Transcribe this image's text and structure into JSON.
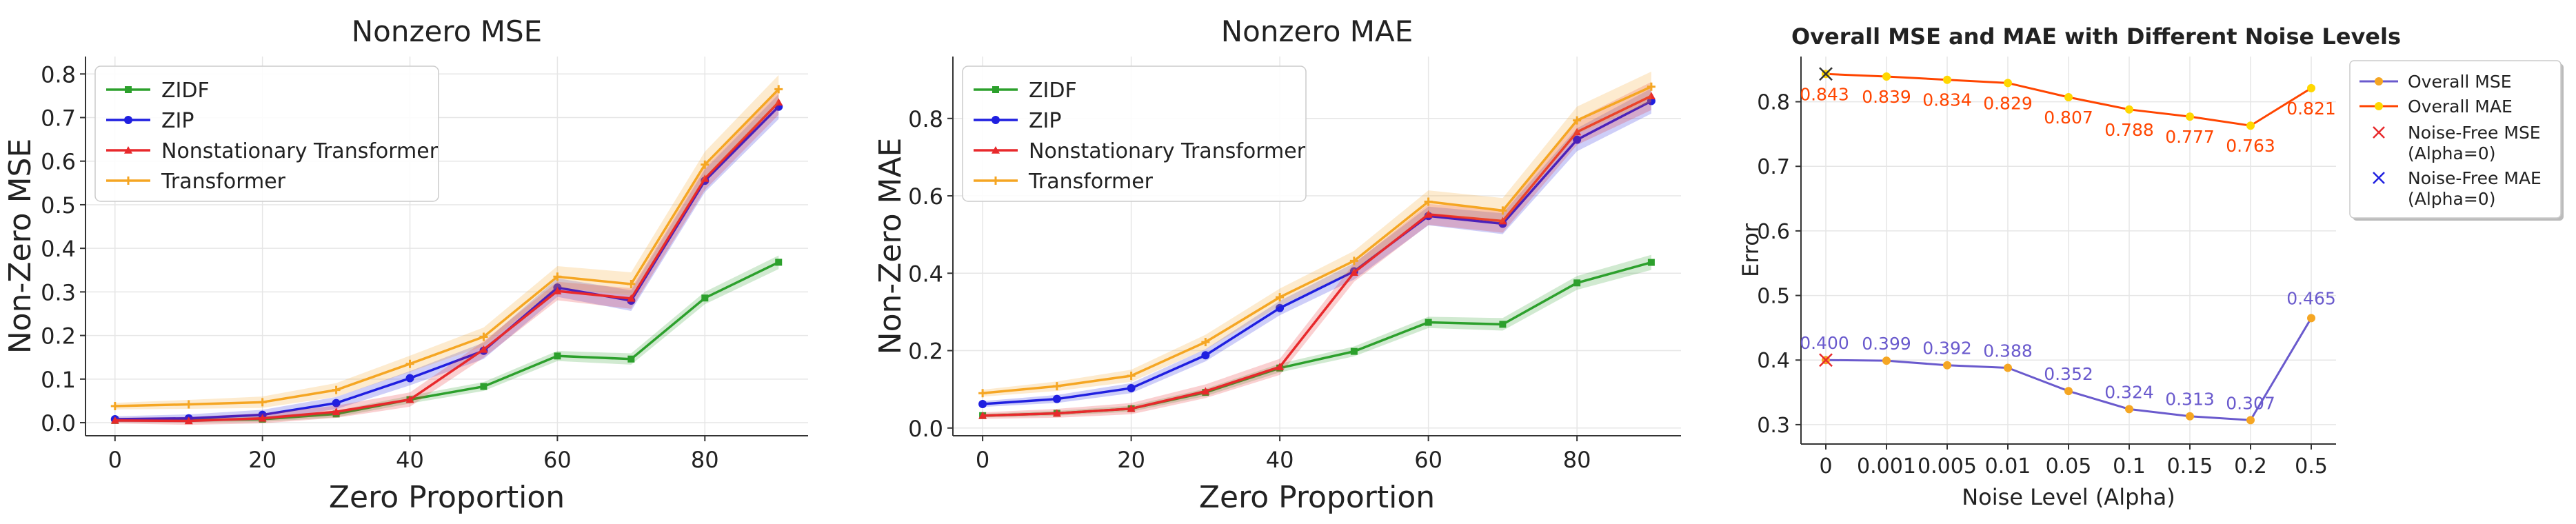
{
  "chart_data": [
    {
      "type": "line",
      "title": "Nonzero MSE",
      "xlabel": "Zero Proportion",
      "ylabel": "Non-Zero MSE",
      "x": [
        0,
        10,
        20,
        30,
        40,
        50,
        60,
        70,
        80,
        90
      ],
      "xticks": [
        0,
        20,
        40,
        60,
        80
      ],
      "yticks": [
        0.0,
        0.1,
        0.2,
        0.3,
        0.4,
        0.5,
        0.6,
        0.7,
        0.8
      ],
      "xlim": [
        -4,
        94
      ],
      "ylim": [
        -0.03,
        0.84
      ],
      "grid": true,
      "legend_position": "top-left",
      "series": [
        {
          "name": "ZIDF",
          "color": "#2ca02c",
          "marker": "square",
          "values": [
            0.005,
            0.006,
            0.008,
            0.02,
            0.053,
            0.083,
            0.153,
            0.146,
            0.286,
            0.368
          ],
          "band": 0.012
        },
        {
          "name": "ZIP",
          "color": "#1f1fe0",
          "marker": "circle",
          "values": [
            0.008,
            0.01,
            0.018,
            0.045,
            0.102,
            0.165,
            0.31,
            0.28,
            0.555,
            0.725
          ],
          "band": 0.022
        },
        {
          "name": "Nonstationary Transformer",
          "color": "#e8292c",
          "marker": "triangle",
          "values": [
            0.005,
            0.004,
            0.01,
            0.025,
            0.053,
            0.168,
            0.302,
            0.285,
            0.56,
            0.735
          ],
          "band": 0.022
        },
        {
          "name": "Transformer",
          "color": "#f5a623",
          "marker": "plus",
          "values": [
            0.038,
            0.042,
            0.047,
            0.075,
            0.135,
            0.197,
            0.335,
            0.318,
            0.592,
            0.765
          ],
          "band": 0.025
        }
      ]
    },
    {
      "type": "line",
      "title": "Nonzero MAE",
      "xlabel": "Zero Proportion",
      "ylabel": "Non-Zero MAE",
      "x": [
        0,
        10,
        20,
        30,
        40,
        50,
        60,
        70,
        80,
        90
      ],
      "xticks": [
        0,
        20,
        40,
        60,
        80
      ],
      "yticks": [
        0.0,
        0.2,
        0.4,
        0.6,
        0.8
      ],
      "xlim": [
        -4,
        94
      ],
      "ylim": [
        -0.02,
        0.96
      ],
      "grid": true,
      "legend_position": "top-left",
      "series": [
        {
          "name": "ZIDF",
          "color": "#2ca02c",
          "marker": "square",
          "values": [
            0.032,
            0.038,
            0.05,
            0.092,
            0.155,
            0.198,
            0.273,
            0.268,
            0.375,
            0.428
          ],
          "band": 0.015
        },
        {
          "name": "ZIP",
          "color": "#1f1fe0",
          "marker": "circle",
          "values": [
            0.062,
            0.075,
            0.103,
            0.188,
            0.31,
            0.405,
            0.548,
            0.528,
            0.745,
            0.845
          ],
          "band": 0.025
        },
        {
          "name": "Nonstationary Transformer",
          "color": "#e8292c",
          "marker": "triangle",
          "values": [
            0.032,
            0.038,
            0.05,
            0.095,
            0.158,
            0.402,
            0.552,
            0.535,
            0.765,
            0.858
          ],
          "band": 0.028
        },
        {
          "name": "Transformer",
          "color": "#f5a623",
          "marker": "plus",
          "values": [
            0.09,
            0.108,
            0.135,
            0.222,
            0.338,
            0.432,
            0.585,
            0.562,
            0.795,
            0.882
          ],
          "band": 0.03
        }
      ]
    },
    {
      "type": "line",
      "title": "Overall MSE and MAE with Different Noise Levels",
      "xlabel": "Noise Level (Alpha)",
      "ylabel": "Error",
      "categories": [
        "0",
        "0.001",
        "0.005",
        "0.01",
        "0.05",
        "0.1",
        "0.15",
        "0.2",
        "0.5"
      ],
      "yticks": [
        0.3,
        0.4,
        0.5,
        0.6,
        0.7,
        0.8
      ],
      "ylim": [
        0.27,
        0.87
      ],
      "grid": true,
      "legend_position": "outside-right",
      "series": [
        {
          "name": "Overall MSE",
          "color": "#6a5acd",
          "marker_color": "#f5a623",
          "values": [
            0.4,
            0.399,
            0.392,
            0.388,
            0.352,
            0.324,
            0.313,
            0.307,
            0.465
          ],
          "labels": [
            "0.400",
            "0.399",
            "0.392",
            "0.388",
            "0.352",
            "0.324",
            "0.313",
            "0.307",
            "0.465"
          ]
        },
        {
          "name": "Overall MAE",
          "color": "#ff4500",
          "marker_color": "#ffd700",
          "values": [
            0.843,
            0.839,
            0.834,
            0.829,
            0.807,
            0.788,
            0.777,
            0.763,
            0.821
          ],
          "labels": [
            "0.843",
            "0.839",
            "0.834",
            "0.829",
            "0.807",
            "0.788",
            "0.777",
            "0.763",
            "0.821"
          ]
        }
      ],
      "reference_points": [
        {
          "name": "Noise-Free MSE",
          "sub": "(Alpha=0)",
          "color": "#e8292c",
          "value": 0.4
        },
        {
          "name": "Noise-Free MAE",
          "sub": "(Alpha=0)",
          "color": "#1f1fe0",
          "value": 0.843
        }
      ]
    }
  ]
}
